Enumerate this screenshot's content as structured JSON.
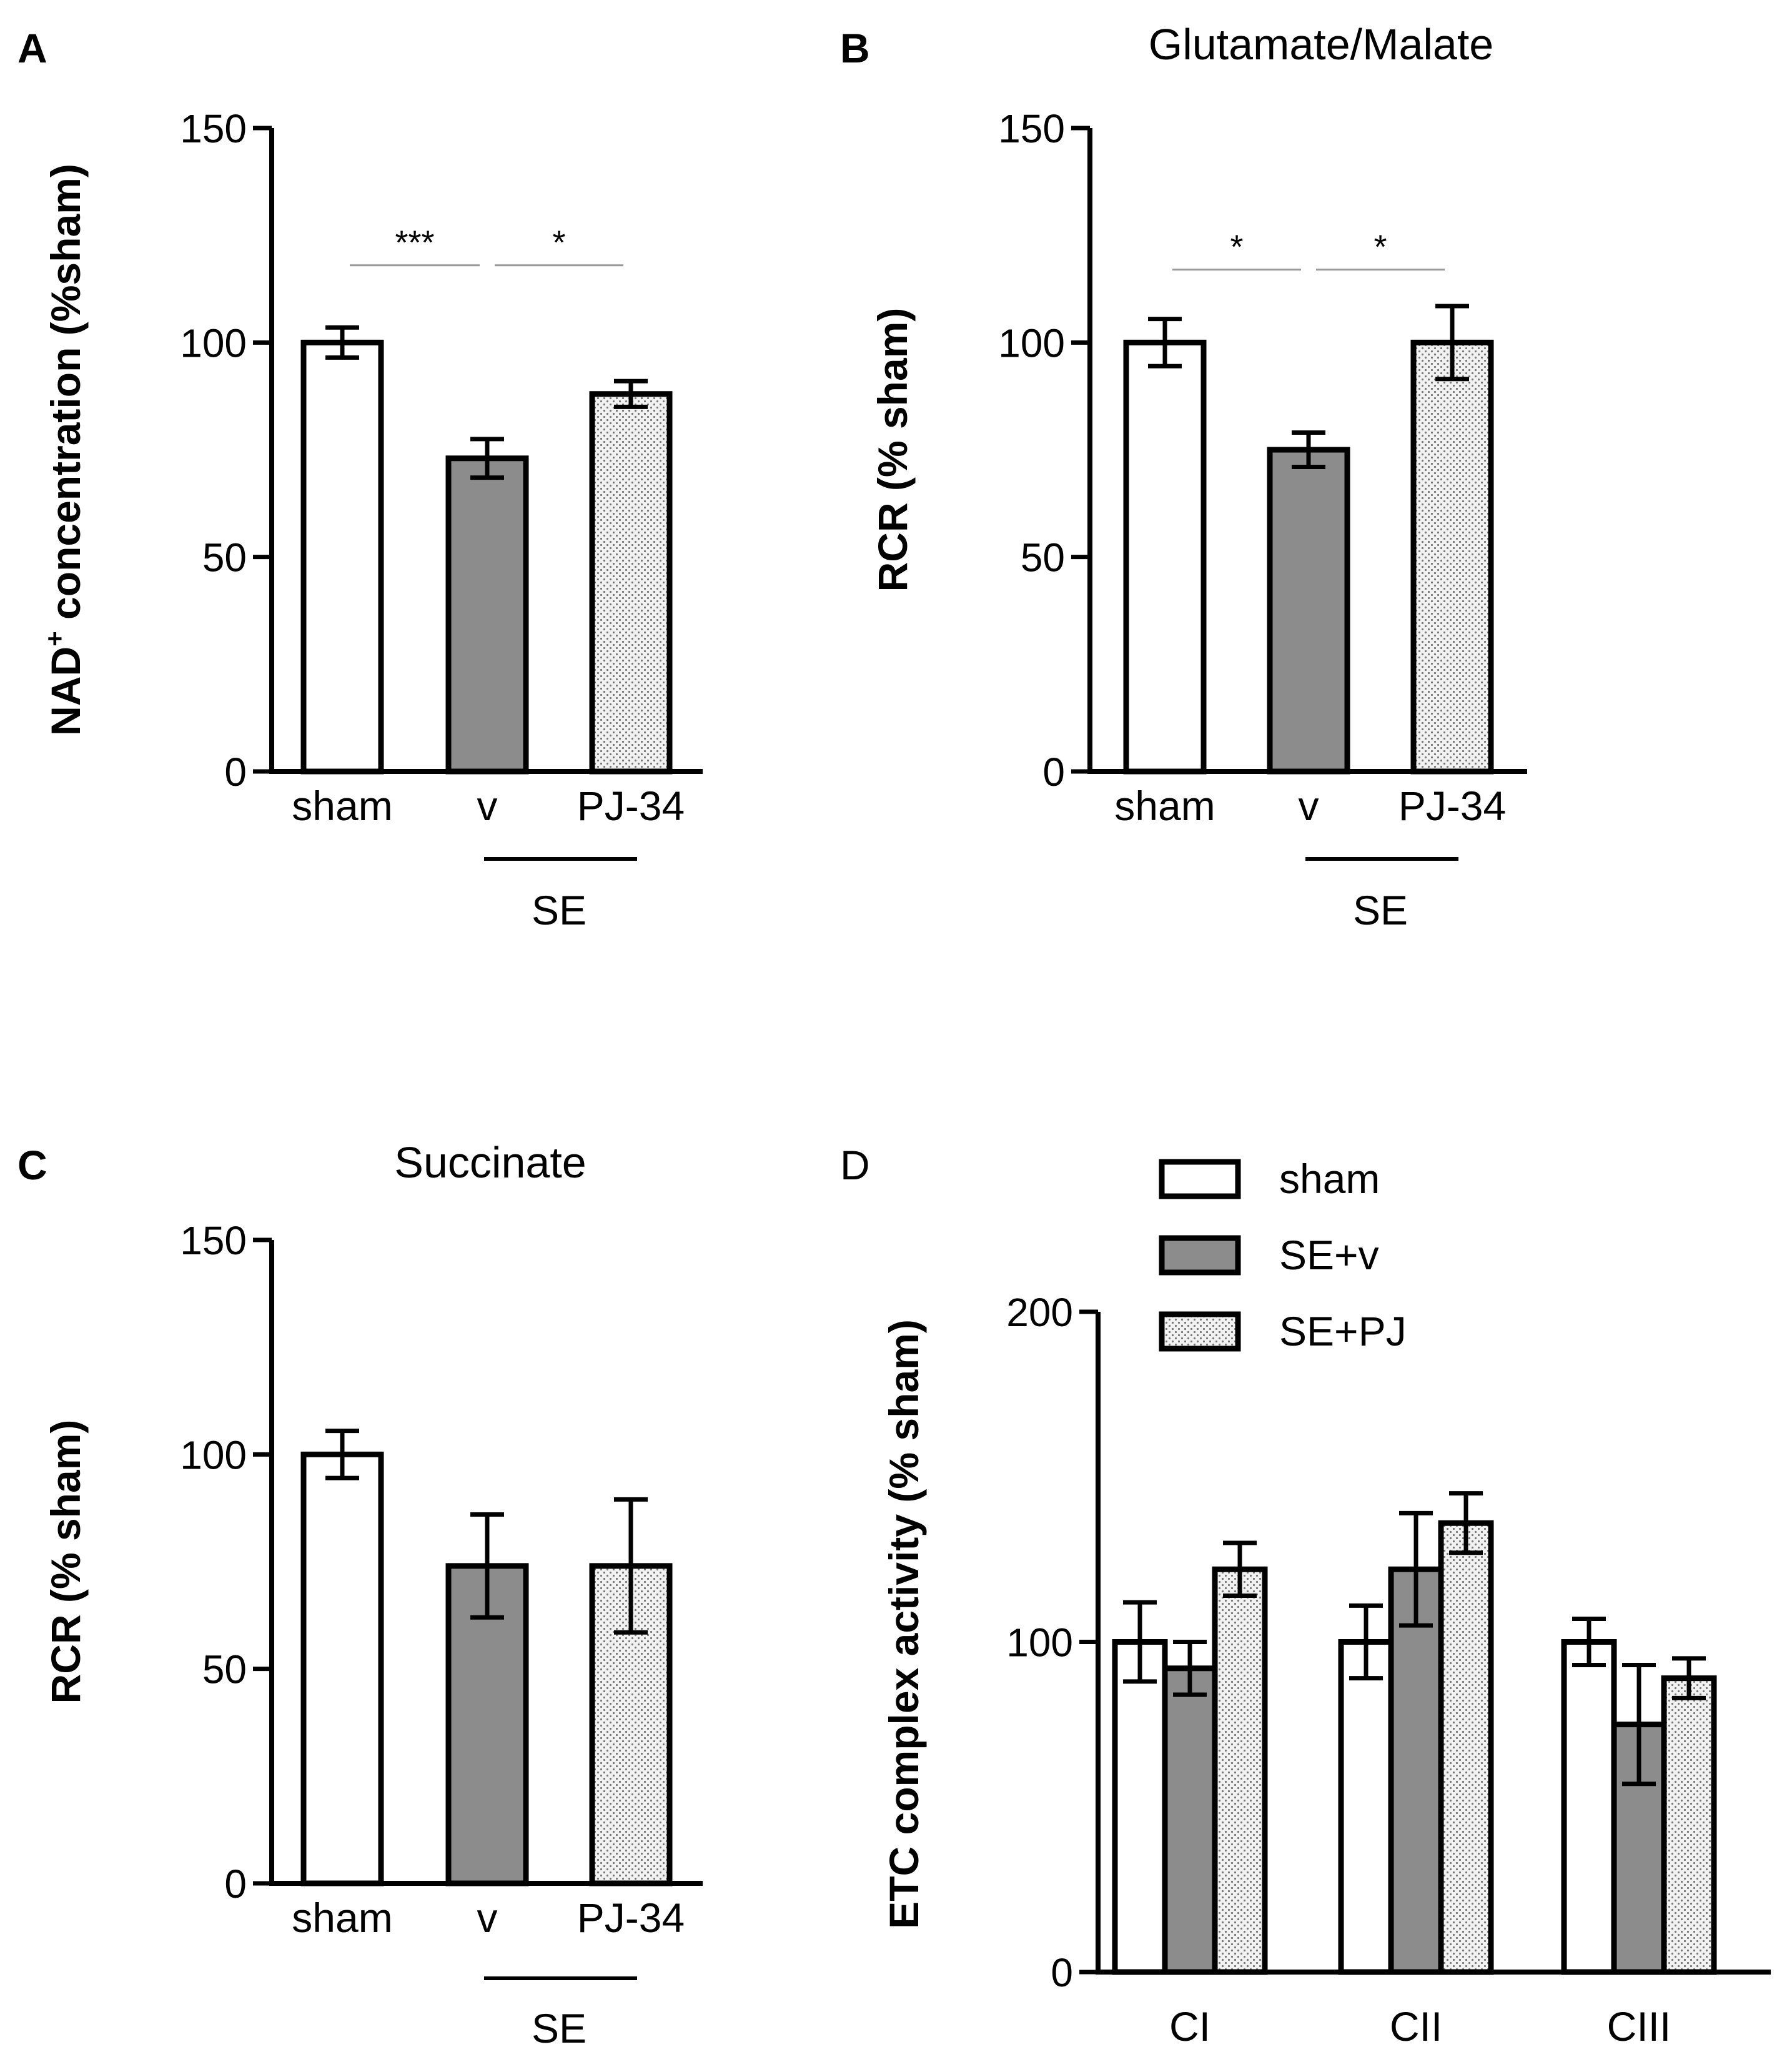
{
  "colors": {
    "white_fill": "#ffffff",
    "grey_fill": "#8c8c8c",
    "dot_fill": "#f2f2f2",
    "dot_color": "#777777",
    "axis": "#000000",
    "sig_line": "#999999"
  },
  "chart_data": [
    {
      "id": "A",
      "type": "bar",
      "panel_label": "A",
      "title": "",
      "ylabel_main": "NAD",
      "ylabel_sup": "+",
      "ylabel_rest": " concentration (%sham)",
      "ylim": [
        0,
        150
      ],
      "yticks": [
        0,
        50,
        100,
        150
      ],
      "categories": [
        "sham",
        "v",
        "PJ-34"
      ],
      "values": [
        100,
        73,
        88
      ],
      "errors": [
        3.5,
        4.5,
        3
      ],
      "fills": [
        "white",
        "grey",
        "dotted"
      ],
      "group_label": "SE",
      "significance": [
        {
          "from": 0,
          "to": 1,
          "label": "***",
          "y": 118
        },
        {
          "from": 1,
          "to": 2,
          "label": "*",
          "y": 118
        }
      ]
    },
    {
      "id": "B",
      "type": "bar",
      "panel_label": "B",
      "title": "Glutamate/Malate",
      "ylabel_main": "RCR (% sham)",
      "ylim": [
        0,
        150
      ],
      "yticks": [
        0,
        50,
        100,
        150
      ],
      "categories": [
        "sham",
        "v",
        "PJ-34"
      ],
      "values": [
        100,
        75,
        100
      ],
      "errors": [
        5.5,
        4,
        8.5
      ],
      "fills": [
        "white",
        "grey",
        "dotted"
      ],
      "group_label": "SE",
      "significance": [
        {
          "from": 0,
          "to": 1,
          "label": "*",
          "y": 117
        },
        {
          "from": 1,
          "to": 2,
          "label": "*",
          "y": 117
        }
      ]
    },
    {
      "id": "C",
      "type": "bar",
      "panel_label": "C",
      "title": "Succinate",
      "ylabel_main": "RCR (% sham)",
      "ylim": [
        0,
        150
      ],
      "yticks": [
        0,
        50,
        100,
        150
      ],
      "categories": [
        "sham",
        "v",
        "PJ-34"
      ],
      "values": [
        100,
        74,
        74
      ],
      "errors": [
        5.5,
        12,
        15.5
      ],
      "fills": [
        "white",
        "grey",
        "dotted"
      ],
      "group_label": "SE",
      "significance": []
    },
    {
      "id": "D",
      "type": "bar",
      "panel_label": "D",
      "title": "",
      "ylabel_main": "ETC complex activity (% sham)",
      "ylim": [
        0,
        200
      ],
      "yticks": [
        0,
        100,
        200
      ],
      "categories": [
        "CI",
        "CII",
        "CIII"
      ],
      "series": [
        {
          "name": "sham",
          "fill": "white",
          "values": [
            100,
            100,
            100
          ],
          "errors": [
            12,
            11,
            7
          ]
        },
        {
          "name": "SE+v",
          "fill": "grey",
          "values": [
            92,
            122,
            75
          ],
          "errors": [
            8,
            17,
            18
          ]
        },
        {
          "name": "SE+PJ",
          "fill": "dotted",
          "values": [
            122,
            136,
            89
          ],
          "errors": [
            8,
            9,
            6
          ]
        }
      ],
      "legend_position": "top"
    }
  ]
}
